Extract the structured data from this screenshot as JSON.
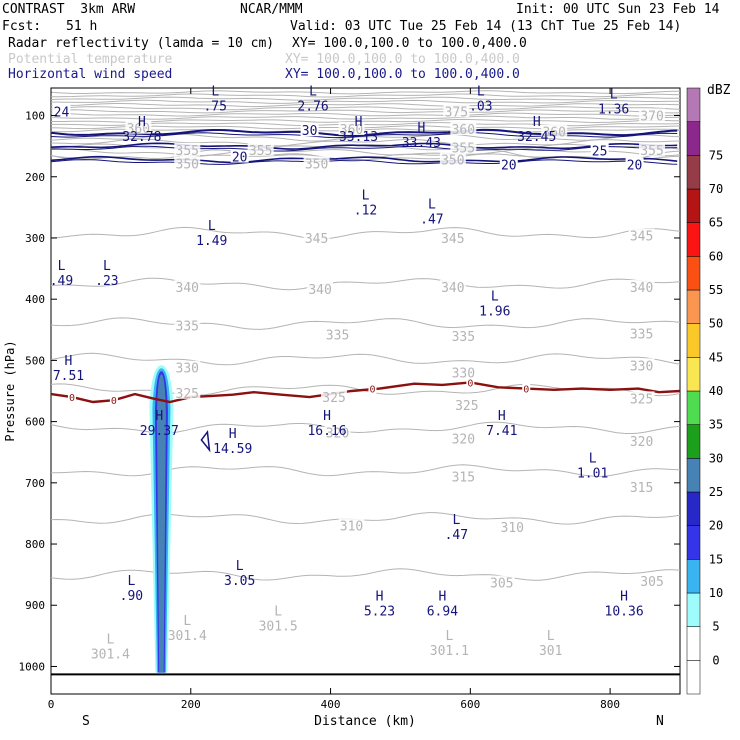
{
  "header": {
    "experiment": "CONTRAST  3km ARW",
    "org": "NCAR/MMM",
    "init": "Init: 00 UTC Sun 23 Feb 14",
    "fcst_label": "Fcst:",
    "fcst_value": "51 h",
    "valid": "Valid: 03 UTC Tue 25 Feb 14 (13 ChT Tue 25 Feb 14)",
    "field1": "Radar reflectivity (lamda = 10 cm)",
    "field1_xy": "XY= 100.0,100.0 to 100.0,400.0",
    "field2": "Potential temperature",
    "field2_xy": "XY= 100.0,100.0 to 100.0,400.0",
    "field3": "Horizontal wind speed",
    "field3_xy": "XY= 100.0,100.0 to 100.0,400.0"
  },
  "colors": {
    "grey": "#b4b4b4",
    "navy": "#14147a",
    "maroon": "#8b1010"
  },
  "chart_data": {
    "type": "cross-section",
    "xlabel": "Distance (km)",
    "ylabel": "Pressure (hPa)",
    "xlim": [
      0,
      900
    ],
    "ylim": [
      1045,
      55
    ],
    "x_ticks": [
      0,
      200,
      400,
      600,
      800
    ],
    "y_ticks": [
      100,
      200,
      300,
      400,
      500,
      600,
      700,
      800,
      900,
      1000
    ],
    "x_end_labels": {
      "left": "S",
      "right": "N"
    },
    "colorbar": {
      "unit": "dBZ",
      "levels": [
        -5,
        0,
        5,
        10,
        15,
        20,
        25,
        30,
        35,
        40,
        45,
        50,
        55,
        60,
        65,
        70,
        75,
        80
      ],
      "labels": [
        "0",
        "5",
        "10",
        "15",
        "20",
        "25",
        "30",
        "35",
        "40",
        "45",
        "50",
        "55",
        "60",
        "65",
        "70",
        "75"
      ],
      "colors": [
        "#ffffff",
        "#ffffff",
        "#9ffcfc",
        "#38b4f0",
        "#3434e8",
        "#2828c8",
        "#4682b4",
        "#1ca01c",
        "#50dc50",
        "#fae650",
        "#fac828",
        "#fa9650",
        "#fa5014",
        "#fa1414",
        "#b41414",
        "#963c46",
        "#8c288c",
        "#b478b4"
      ]
    },
    "theta_isentropes": [
      {
        "value": 350,
        "p": 165
      },
      {
        "value": 345,
        "p": 292
      },
      {
        "value": 340,
        "p": 375
      },
      {
        "value": 335,
        "p": 440
      },
      {
        "value": 330,
        "p": 498
      },
      {
        "value": 325,
        "p": 548
      },
      {
        "value": 320,
        "p": 610
      },
      {
        "value": 315,
        "p": 680
      },
      {
        "value": 310,
        "p": 758
      },
      {
        "value": 305,
        "p": 850
      }
    ],
    "theta_labels": [
      {
        "text": "360",
        "x": 125,
        "p": 120
      },
      {
        "text": "360",
        "x": 430,
        "p": 122
      },
      {
        "text": "360",
        "x": 590,
        "p": 122
      },
      {
        "text": "360",
        "x": 720,
        "p": 126
      },
      {
        "text": "355",
        "x": 195,
        "p": 156
      },
      {
        "text": "355",
        "x": 300,
        "p": 156
      },
      {
        "text": "355",
        "x": 590,
        "p": 152
      },
      {
        "text": "355",
        "x": 860,
        "p": 156
      },
      {
        "text": "375",
        "x": 580,
        "p": 93
      },
      {
        "text": "370",
        "x": 860,
        "p": 100
      },
      {
        "text": "350",
        "x": 195,
        "p": 178
      },
      {
        "text": "350",
        "x": 380,
        "p": 178
      },
      {
        "text": "350",
        "x": 575,
        "p": 172
      },
      {
        "text": "345",
        "x": 380,
        "p": 300
      },
      {
        "text": "345",
        "x": 575,
        "p": 300
      },
      {
        "text": "345",
        "x": 845,
        "p": 296
      },
      {
        "text": "340",
        "x": 195,
        "p": 380
      },
      {
        "text": "340",
        "x": 385,
        "p": 383
      },
      {
        "text": "340",
        "x": 575,
        "p": 380
      },
      {
        "text": "340",
        "x": 845,
        "p": 380
      },
      {
        "text": "335",
        "x": 195,
        "p": 443
      },
      {
        "text": "335",
        "x": 410,
        "p": 458
      },
      {
        "text": "335",
        "x": 590,
        "p": 460
      },
      {
        "text": "335",
        "x": 845,
        "p": 456
      },
      {
        "text": "330",
        "x": 195,
        "p": 512
      },
      {
        "text": "330",
        "x": 590,
        "p": 520
      },
      {
        "text": "330",
        "x": 845,
        "p": 508
      },
      {
        "text": "325",
        "x": 195,
        "p": 553
      },
      {
        "text": "325",
        "x": 405,
        "p": 560
      },
      {
        "text": "325",
        "x": 595,
        "p": 573
      },
      {
        "text": "325",
        "x": 845,
        "p": 562
      },
      {
        "text": "320",
        "x": 410,
        "p": 618
      },
      {
        "text": "320",
        "x": 590,
        "p": 628
      },
      {
        "text": "320",
        "x": 845,
        "p": 632
      },
      {
        "text": "315",
        "x": 590,
        "p": 690
      },
      {
        "text": "315",
        "x": 845,
        "p": 707
      },
      {
        "text": "310",
        "x": 430,
        "p": 770
      },
      {
        "text": "310",
        "x": 660,
        "p": 772
      },
      {
        "text": "305",
        "x": 645,
        "p": 863
      },
      {
        "text": "305",
        "x": 860,
        "p": 860
      }
    ],
    "theta_extrema": [
      {
        "kind": "L",
        "value": "301.4",
        "x": 85,
        "p": 985
      },
      {
        "kind": "L",
        "value": "301.4",
        "x": 195,
        "p": 955
      },
      {
        "kind": "L",
        "value": "301.5",
        "x": 325,
        "p": 940
      },
      {
        "kind": "L",
        "value": "301.1",
        "x": 570,
        "p": 980
      },
      {
        "kind": "L",
        "value": "301",
        "x": 715,
        "p": 980
      }
    ],
    "wind_contours": [
      {
        "value": 30,
        "p": 128
      },
      {
        "value": 25,
        "p": 150
      },
      {
        "value": 20,
        "p": 172
      }
    ],
    "wind_contour_labels": [
      {
        "text": "30",
        "x": 370,
        "p": 124
      },
      {
        "text": "25",
        "x": 785,
        "p": 157
      },
      {
        "text": "20",
        "x": 270,
        "p": 167
      },
      {
        "text": "20",
        "x": 655,
        "p": 180
      },
      {
        "text": "20",
        "x": 835,
        "p": 180
      },
      {
        "text": "24",
        "x": 15,
        "p": 93
      }
    ],
    "wind_extrema": [
      {
        "kind": "L",
        "value": ".75",
        "x": 235,
        "p": 90
      },
      {
        "kind": "L",
        "value": "2.76",
        "x": 375,
        "p": 90
      },
      {
        "kind": "L",
        "value": ".03",
        "x": 615,
        "p": 90
      },
      {
        "kind": "L",
        "value": "1.36",
        "x": 805,
        "p": 95
      },
      {
        "kind": "H",
        "value": "32.78",
        "x": 130,
        "p": 140
      },
      {
        "kind": "H",
        "value": "33.13",
        "x": 440,
        "p": 140
      },
      {
        "kind": "H",
        "value": "33.43",
        "x": 530,
        "p": 150
      },
      {
        "kind": "H",
        "value": "32.45",
        "x": 695,
        "p": 140
      },
      {
        "kind": "L",
        "value": ".12",
        "x": 450,
        "p": 260
      },
      {
        "kind": "L",
        "value": ".47",
        "x": 545,
        "p": 275
      },
      {
        "kind": "L",
        "value": "1.49",
        "x": 230,
        "p": 310
      },
      {
        "kind": "L",
        "value": ".49",
        "x": 15,
        "p": 375
      },
      {
        "kind": "L",
        "value": ".23",
        "x": 80,
        "p": 375
      },
      {
        "kind": "L",
        "value": "1.96",
        "x": 635,
        "p": 425
      },
      {
        "kind": "H",
        "value": "7.51",
        "x": 25,
        "p": 530
      },
      {
        "kind": "H",
        "value": "29.37",
        "x": 155,
        "p": 620
      },
      {
        "kind": "H",
        "value": "14.59",
        "x": 260,
        "p": 650
      },
      {
        "kind": "H",
        "value": "16.16",
        "x": 395,
        "p": 620
      },
      {
        "kind": "H",
        "value": "7.41",
        "x": 645,
        "p": 620
      },
      {
        "kind": "L",
        "value": "1.01",
        "x": 775,
        "p": 690
      },
      {
        "kind": "L",
        "value": ".47",
        "x": 580,
        "p": 790
      },
      {
        "kind": "L",
        "value": "3.05",
        "x": 270,
        "p": 865
      },
      {
        "kind": "L",
        "value": ".90",
        "x": 115,
        "p": 890
      },
      {
        "kind": "H",
        "value": "5.23",
        "x": 470,
        "p": 915
      },
      {
        "kind": "H",
        "value": "6.94",
        "x": 560,
        "p": 915
      },
      {
        "kind": "H",
        "value": "10.36",
        "x": 820,
        "p": 915
      }
    ],
    "zero_line": {
      "label": "0",
      "points": [
        [
          0,
          555
        ],
        [
          30,
          560
        ],
        [
          60,
          568
        ],
        [
          90,
          565
        ],
        [
          120,
          555
        ],
        [
          145,
          562
        ],
        [
          170,
          568
        ],
        [
          200,
          560
        ],
        [
          230,
          558
        ],
        [
          260,
          556
        ],
        [
          290,
          552
        ],
        [
          330,
          556
        ],
        [
          370,
          560
        ],
        [
          400,
          555
        ],
        [
          430,
          550
        ],
        [
          470,
          546
        ],
        [
          520,
          538
        ],
        [
          560,
          540
        ],
        [
          600,
          536
        ],
        [
          640,
          544
        ],
        [
          680,
          546
        ],
        [
          720,
          548
        ],
        [
          760,
          546
        ],
        [
          800,
          548
        ],
        [
          840,
          546
        ],
        [
          870,
          552
        ],
        [
          900,
          550
        ]
      ],
      "label_x": [
        30,
        90,
        460,
        600,
        680
      ]
    },
    "reflectivity_cell": {
      "x_center": 158,
      "p_top": 508,
      "p_base": 1010,
      "max_dbz": 20
    }
  }
}
